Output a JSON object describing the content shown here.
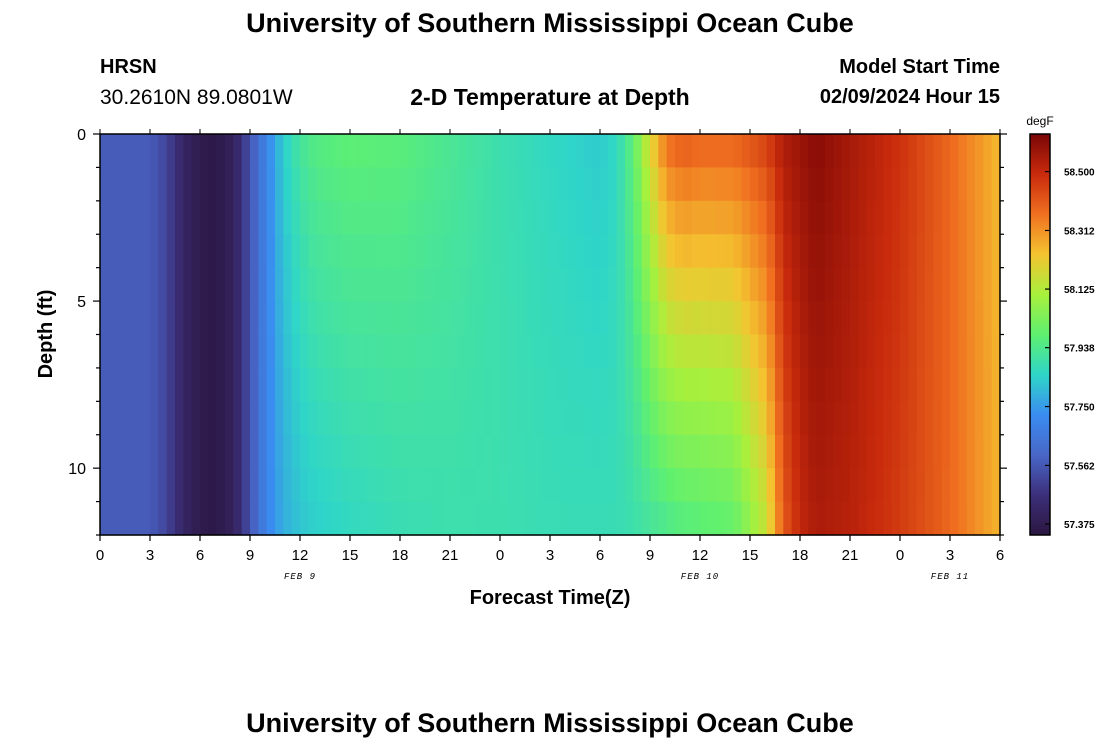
{
  "header": {
    "title": "University of Southern Mississippi Ocean Cube",
    "station": "HRSN",
    "coords": "30.2610N  89.0801W",
    "subtitle": "2-D Temperature at Depth",
    "start_label": "Model Start Time",
    "start_value": "02/09/2024 Hour 15"
  },
  "footer": {
    "title": "University of Southern Mississippi Ocean Cube"
  },
  "chart_data": {
    "type": "heatmap",
    "title": "2-D Temperature at Depth",
    "xlabel": "Forecast Time(Z)",
    "ylabel": "Depth (ft)",
    "x_ticks": [
      "0",
      "3",
      "6",
      "9",
      "12",
      "15",
      "18",
      "21",
      "0",
      "3",
      "6",
      "9",
      "12",
      "15",
      "18",
      "21",
      "0",
      "3",
      "6"
    ],
    "x_range_hours": [
      0,
      54
    ],
    "date_labels": [
      {
        "text": "FEB 9",
        "hour": 12
      },
      {
        "text": "FEB 10",
        "hour": 36
      },
      {
        "text": "FEB 11",
        "hour": 51
      }
    ],
    "y_ticks": [
      0,
      5,
      10
    ],
    "y_range": [
      0,
      12
    ],
    "y_inverted": true,
    "colorbar": {
      "unit": "degF",
      "ticks": [
        "57.375",
        "57.562",
        "57.750",
        "57.938",
        "58.125",
        "58.312",
        "58.500"
      ],
      "range": [
        57.34,
        58.62
      ],
      "stops": [
        "#2b1640",
        "#3c2f7a",
        "#4867c8",
        "#3a8cf0",
        "#2fd6c8",
        "#5ff070",
        "#a8f03c",
        "#f4c430",
        "#f07020",
        "#c82a0c",
        "#7a0606"
      ]
    },
    "timeseries_hours": [
      0,
      3,
      4,
      5,
      6,
      7,
      8,
      9,
      10,
      11,
      12,
      13,
      15,
      18,
      21,
      24,
      27,
      30,
      31,
      32,
      33,
      34,
      35,
      36,
      38,
      40,
      41,
      42,
      43,
      45,
      48,
      51,
      54
    ],
    "surface_degF": [
      57.57,
      57.57,
      57.52,
      57.42,
      57.37,
      57.36,
      57.4,
      57.55,
      57.7,
      57.84,
      57.92,
      57.96,
      57.98,
      57.97,
      57.93,
      57.89,
      57.86,
      57.83,
      57.86,
      57.98,
      58.2,
      58.38,
      58.42,
      58.4,
      58.4,
      58.46,
      58.54,
      58.57,
      58.6,
      58.55,
      58.48,
      58.38,
      58.25
    ],
    "bottom_degF": [
      57.57,
      57.57,
      57.52,
      57.42,
      57.37,
      57.36,
      57.4,
      57.55,
      57.7,
      57.78,
      57.82,
      57.84,
      57.86,
      57.88,
      57.89,
      57.89,
      57.88,
      57.88,
      57.88,
      57.89,
      57.91,
      57.93,
      57.95,
      57.96,
      57.98,
      58.15,
      58.4,
      58.5,
      58.54,
      58.52,
      58.46,
      58.38,
      58.26
    ],
    "grid": false
  }
}
